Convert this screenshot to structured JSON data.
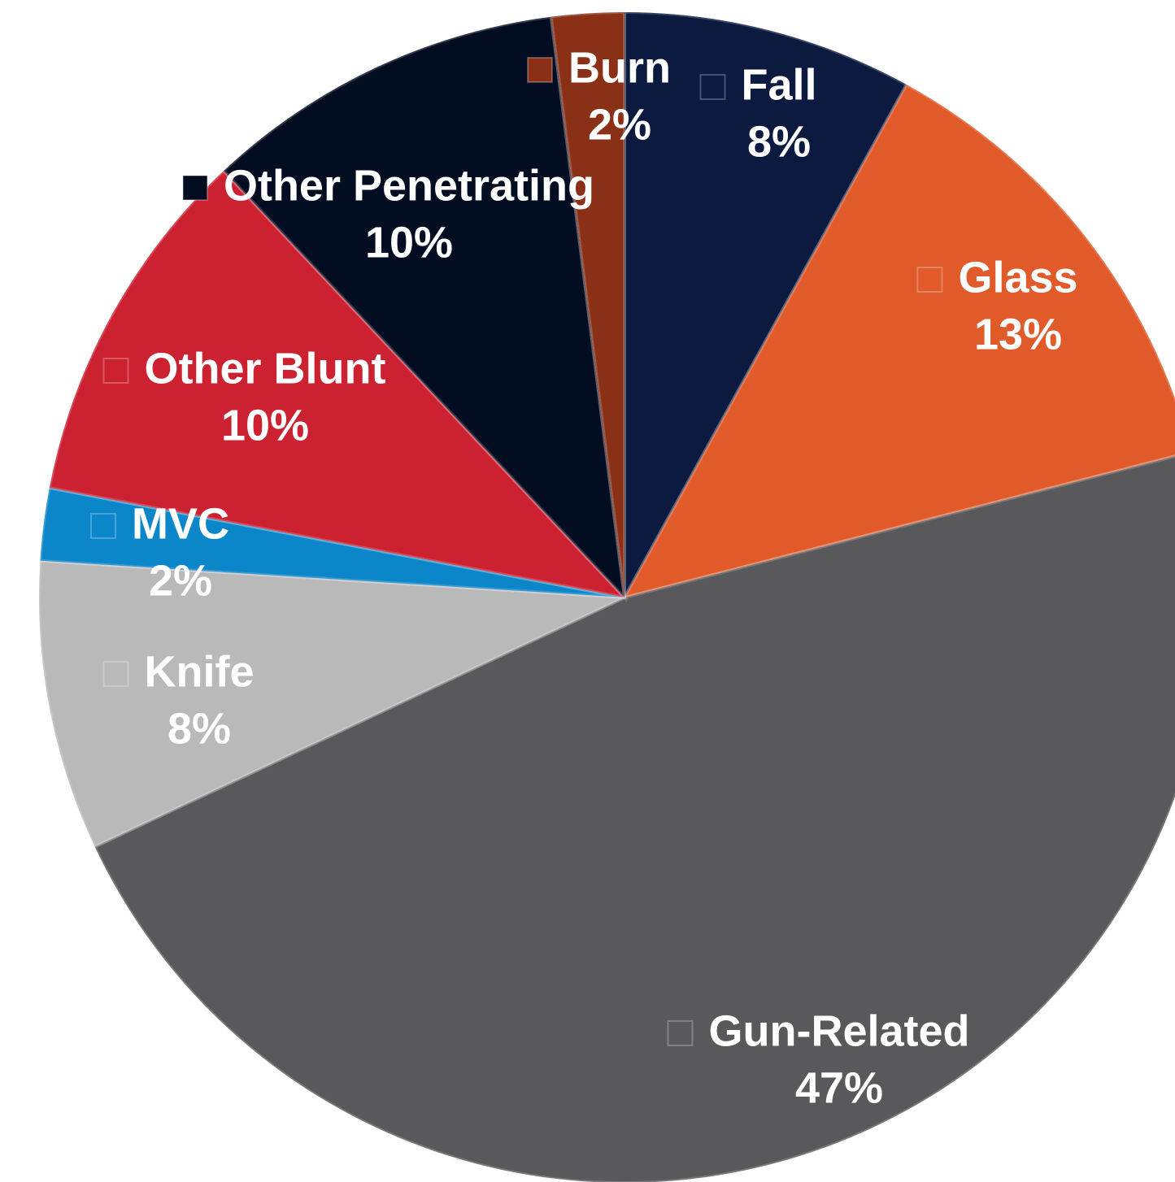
{
  "chart_data": {
    "type": "pie",
    "categories": [
      "Fall",
      "Glass",
      "Gun-Related",
      "Knife",
      "MVC",
      "Other Blunt",
      "Other Penetrating",
      "Burn"
    ],
    "values": [
      8,
      13,
      47,
      8,
      2,
      10,
      10,
      2
    ],
    "value_labels": [
      "8%",
      "13%",
      "47%",
      "8%",
      "2%",
      "10%",
      "10%",
      "2%"
    ],
    "colors": [
      "#0c1a40",
      "#e05a2a",
      "#59595b",
      "#b9b9b9",
      "#0b86c9",
      "#cc2131",
      "#030d22",
      "#8a3016"
    ]
  }
}
